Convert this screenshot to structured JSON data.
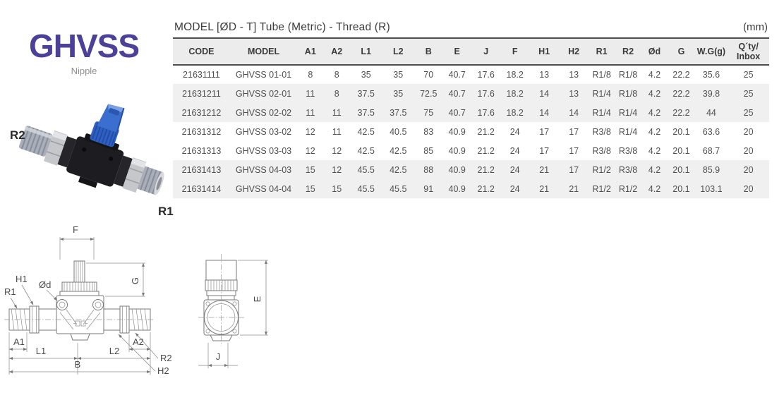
{
  "product": {
    "series": "GHVSS",
    "type": "Nipple",
    "photo_labels": {
      "top_left": "R2",
      "bottom_right": "R1"
    }
  },
  "spec_table": {
    "title": "MODEL [ØD - T]  Tube (Metric) - Thread (R)",
    "unit": "(mm)",
    "columns": [
      "CODE",
      "MODEL",
      "A1",
      "A2",
      "L1",
      "L2",
      "B",
      "E",
      "J",
      "F",
      "H1",
      "H2",
      "R1",
      "R2",
      "Ød",
      "G",
      "W.G(g)"
    ],
    "qty_header": [
      "Q´ty/",
      "Inbox"
    ],
    "rows": [
      [
        "21631111",
        "GHVSS 01-01",
        "8",
        "8",
        "35",
        "35",
        "70",
        "40.7",
        "17.6",
        "18.2",
        "13",
        "13",
        "R1/8",
        "R1/8",
        "4.2",
        "22.2",
        "35.6",
        "25"
      ],
      [
        "21631211",
        "GHVSS 02-01",
        "11",
        "8",
        "37.5",
        "35",
        "72.5",
        "40.7",
        "17.6",
        "18.2",
        "14",
        "13",
        "R1/4",
        "R1/8",
        "4.2",
        "22.2",
        "39.8",
        "25"
      ],
      [
        "21631212",
        "GHVSS 02-02",
        "11",
        "11",
        "37.5",
        "37.5",
        "75",
        "40.7",
        "17.6",
        "18.2",
        "14",
        "14",
        "R1/4",
        "R1/4",
        "4.2",
        "22.2",
        "44",
        "25"
      ],
      [
        "21631312",
        "GHVSS 03-02",
        "12",
        "11",
        "42.5",
        "40.5",
        "83",
        "40.9",
        "21.2",
        "24",
        "17",
        "17",
        "R3/8",
        "R1/4",
        "4.2",
        "20.1",
        "63.6",
        "20"
      ],
      [
        "21631313",
        "GHVSS 03-03",
        "12",
        "12",
        "42.5",
        "42.5",
        "85",
        "40.9",
        "21.2",
        "24",
        "17",
        "17",
        "R3/8",
        "R3/8",
        "4.2",
        "20.1",
        "68.7",
        "20"
      ],
      [
        "21631413",
        "GHVSS 04-03",
        "15",
        "12",
        "45.5",
        "42.5",
        "88",
        "40.9",
        "21.2",
        "24",
        "21",
        "17",
        "R1/2",
        "R3/8",
        "4.2",
        "20.1",
        "85.9",
        "20"
      ],
      [
        "21631414",
        "GHVSS 04-04",
        "15",
        "15",
        "45.5",
        "45.5",
        "91",
        "40.9",
        "21.2",
        "24",
        "21",
        "21",
        "R1/2",
        "R1/2",
        "4.2",
        "20.1",
        "103.1",
        "20"
      ]
    ],
    "shaded_rows": [
      1,
      2,
      5,
      6
    ]
  },
  "drawings": {
    "side_view": {
      "labels": {
        "f": "F",
        "g": "G",
        "h1": "H1",
        "r1": "R1",
        "od": "Ød",
        "a1": "A1",
        "l1": "L1",
        "l2": "L2",
        "a2": "A2",
        "b": "B",
        "r2": "R2",
        "h2": "H2"
      }
    },
    "end_view": {
      "labels": {
        "e": "E",
        "j": "J"
      }
    }
  },
  "colors": {
    "accent_purple": "#4c4199",
    "handle_blue": "#3a6fd0",
    "row_shade": "#f0f0f0",
    "rule_dark": "#4d4d4d"
  }
}
